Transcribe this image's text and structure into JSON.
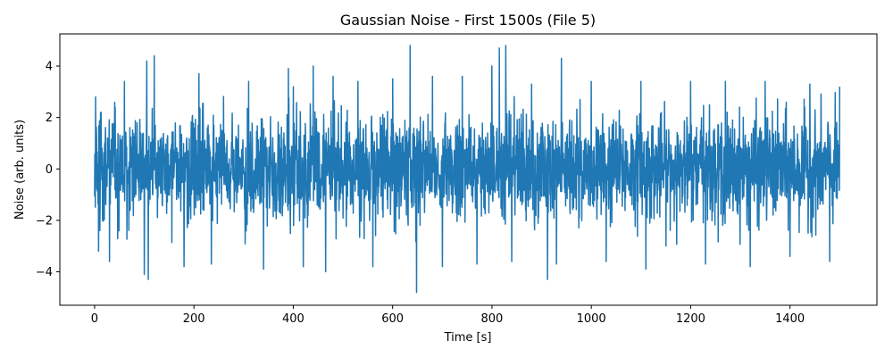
{
  "chart_data": {
    "type": "line",
    "title": "Gaussian Noise - First 1500s (File 5)",
    "xlabel": "Time [s]",
    "ylabel": "Noise (arb. units)",
    "xlim": [
      -70,
      1575
    ],
    "ylim": [
      -5.3,
      5.25
    ],
    "x_ticks": [
      0,
      200,
      400,
      600,
      800,
      1000,
      1200,
      1400
    ],
    "y_ticks": [
      -4,
      -2,
      0,
      2,
      4
    ],
    "series": [
      {
        "color": "#1f77b4",
        "x_start": 0,
        "x_end": 1500,
        "sample_count": 3000,
        "distribution": "gaussian",
        "mean": 0,
        "std": 1,
        "typical_range": [
          -3.0,
          3.0
        ],
        "extremes": [
          {
            "x": 2,
            "y": 2.8
          },
          {
            "x": 8,
            "y": -3.2
          },
          {
            "x": 30,
            "y": -3.6
          },
          {
            "x": 60,
            "y": 3.4
          },
          {
            "x": 100,
            "y": -4.1
          },
          {
            "x": 105,
            "y": 4.2
          },
          {
            "x": 108,
            "y": -4.3
          },
          {
            "x": 120,
            "y": 4.4
          },
          {
            "x": 180,
            "y": -3.8
          },
          {
            "x": 210,
            "y": 3.7
          },
          {
            "x": 235,
            "y": -3.7
          },
          {
            "x": 310,
            "y": 3.4
          },
          {
            "x": 340,
            "y": -3.9
          },
          {
            "x": 390,
            "y": 3.9
          },
          {
            "x": 400,
            "y": 3.2
          },
          {
            "x": 420,
            "y": -3.8
          },
          {
            "x": 440,
            "y": 4.0
          },
          {
            "x": 465,
            "y": -4.0
          },
          {
            "x": 480,
            "y": 3.6
          },
          {
            "x": 530,
            "y": 3.4
          },
          {
            "x": 560,
            "y": -3.8
          },
          {
            "x": 600,
            "y": 3.5
          },
          {
            "x": 635,
            "y": 4.8
          },
          {
            "x": 648,
            "y": -4.8
          },
          {
            "x": 680,
            "y": 3.6
          },
          {
            "x": 700,
            "y": -3.8
          },
          {
            "x": 740,
            "y": 3.6
          },
          {
            "x": 770,
            "y": -3.7
          },
          {
            "x": 800,
            "y": 4.0
          },
          {
            "x": 815,
            "y": 4.7
          },
          {
            "x": 828,
            "y": 4.8
          },
          {
            "x": 840,
            "y": -3.6
          },
          {
            "x": 880,
            "y": 3.3
          },
          {
            "x": 912,
            "y": -4.3
          },
          {
            "x": 930,
            "y": -3.7
          },
          {
            "x": 940,
            "y": 4.3
          },
          {
            "x": 1000,
            "y": 3.4
          },
          {
            "x": 1030,
            "y": -3.6
          },
          {
            "x": 1100,
            "y": 3.4
          },
          {
            "x": 1110,
            "y": -3.9
          },
          {
            "x": 1200,
            "y": 3.4
          },
          {
            "x": 1230,
            "y": -3.7
          },
          {
            "x": 1270,
            "y": 3.4
          },
          {
            "x": 1320,
            "y": -3.8
          },
          {
            "x": 1350,
            "y": 3.4
          },
          {
            "x": 1400,
            "y": -3.4
          },
          {
            "x": 1440,
            "y": 3.3
          },
          {
            "x": 1480,
            "y": -3.6
          },
          {
            "x": 1500,
            "y": 3.2
          }
        ]
      }
    ],
    "grid": false,
    "legend": "none"
  }
}
